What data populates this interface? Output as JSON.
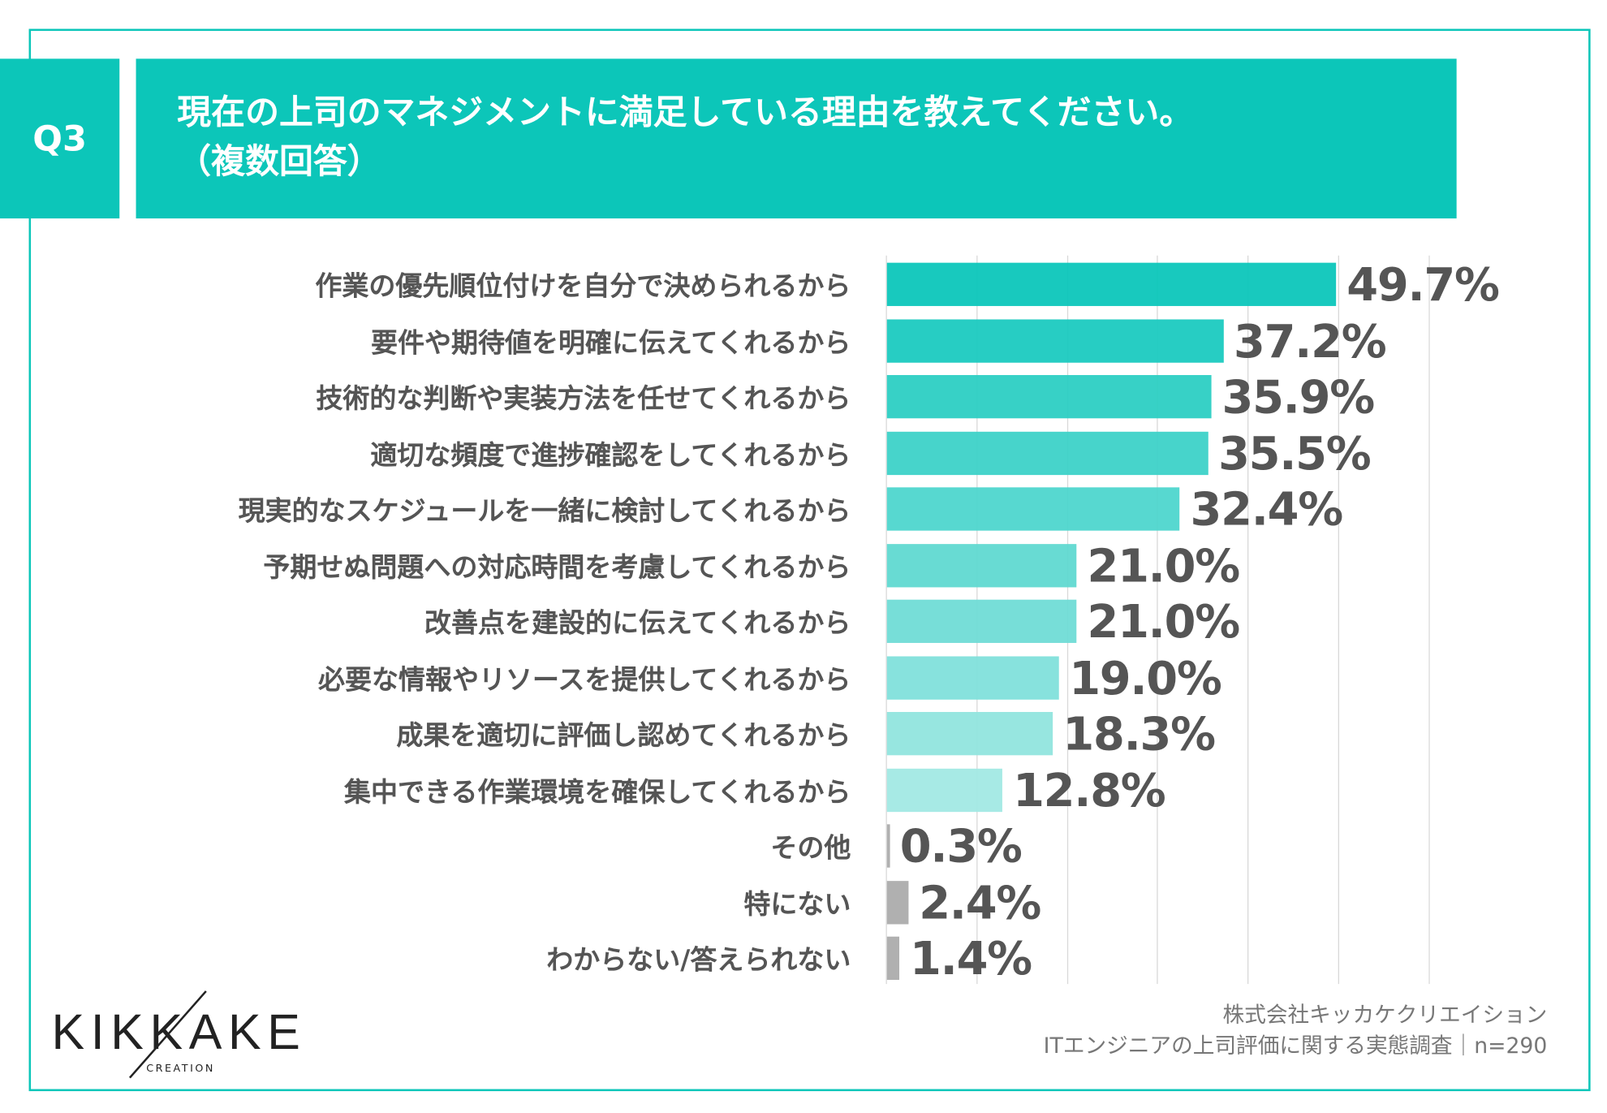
{
  "header": {
    "question_no": "Q3",
    "title_line1": "現在の上司のマネジメントに満足している理由を教えてください。",
    "title_line2": "（複数回答）"
  },
  "chart_data": {
    "type": "bar",
    "orientation": "horizontal",
    "title": "現在の上司のマネジメントに満足している理由を教えてください。（複数回答）",
    "xlim": [
      0,
      60
    ],
    "grid": true,
    "categories": [
      "作業の優先順位付けを自分で決められるから",
      "要件や期待値を明確に伝えてくれるから",
      "技術的な判断や実装方法を任せてくれるから",
      "適切な頻度で進捗確認をしてくれるから",
      "現実的なスケジュールを一緒に検討してくれるから",
      "予期せぬ問題への対応時間を考慮してくれるから",
      "改善点を建設的に伝えてくれるから",
      "必要な情報やリソースを提供してくれるから",
      "成果を適切に評価し認めてくれるから",
      "集中できる作業環境を確保してくれるから",
      "その他",
      "特にない",
      "わからない/答えられない"
    ],
    "values": [
      49.7,
      37.2,
      35.9,
      35.5,
      32.4,
      21.0,
      21.0,
      19.0,
      18.3,
      12.8,
      0.3,
      2.4,
      1.4
    ],
    "value_labels": [
      "49.7%",
      "37.2%",
      "35.9%",
      "35.5%",
      "32.4%",
      "21.0%",
      "21.0%",
      "19.0%",
      "18.3%",
      "12.8%",
      "0.3%",
      "2.4%",
      "1.4%"
    ],
    "colors": {
      "accent_start": "#06c5b9",
      "accent_end": "#a0e8e3",
      "other": "#b0b0b0"
    }
  },
  "footer": {
    "company": "株式会社キッカケクリエイション",
    "survey": "ITエンジニアの上司評価に関する実態調査｜n=290"
  },
  "logo": {
    "name": "KIKKAKE",
    "sub": "CREATION"
  }
}
